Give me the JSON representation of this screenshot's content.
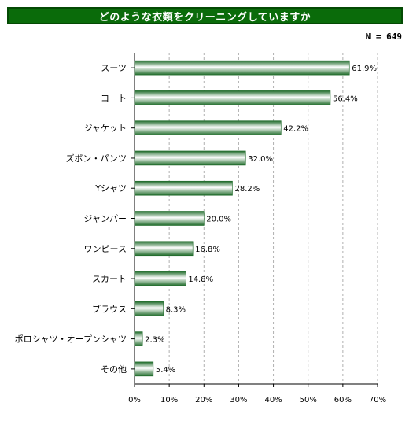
{
  "title": "どのような衣類をクリーニングしていますか",
  "sample_size": "N = 649",
  "chart_data": {
    "type": "bar",
    "orientation": "horizontal",
    "title": "どのような衣類をクリーニングしていますか",
    "categories": [
      "スーツ",
      "コート",
      "ジャケット",
      "ズボン・パンツ",
      "Yシャツ",
      "ジャンパー",
      "ワンピース",
      "スカート",
      "ブラウス",
      "ポロシャツ・オープンシャツ",
      "その他"
    ],
    "values": [
      61.9,
      56.4,
      42.2,
      32.0,
      28.2,
      20.0,
      16.8,
      14.8,
      8.3,
      2.3,
      5.4
    ],
    "value_labels": [
      "61.9%",
      "56.4%",
      "42.2%",
      "32.0%",
      "28.2%",
      "20.0%",
      "16.8%",
      "14.8%",
      "8.3%",
      "2.3%",
      "5.4%"
    ],
    "xlim": [
      0,
      70
    ],
    "x_ticks": [
      0,
      10,
      20,
      30,
      40,
      50,
      60,
      70
    ],
    "x_tick_labels": [
      "0%",
      "10%",
      "20%",
      "30%",
      "40%",
      "50%",
      "60%",
      "70%"
    ],
    "grid": true,
    "bar_color": "#2e8b3a",
    "grid_color": "#b0b0b0"
  }
}
